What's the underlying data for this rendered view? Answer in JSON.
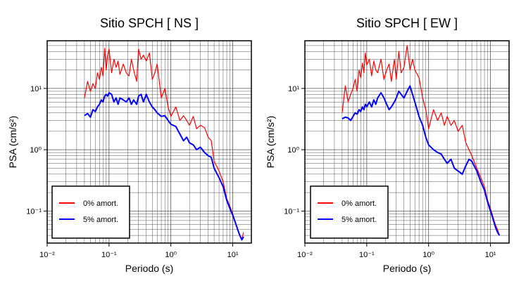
{
  "chart_data": [
    {
      "type": "line",
      "title": "Sitio SPCH [ NS ]",
      "xlabel": "Periodo (s)",
      "ylabel": "PSA (cm/s²)",
      "xscale": "log",
      "yscale": "log",
      "xlim": [
        0.01,
        20
      ],
      "ylim": [
        0.03,
        60
      ],
      "grid": true,
      "legend_position": "bottom-left",
      "x_tick_labels": [
        "10⁻²",
        "10⁻¹",
        "10⁰",
        "10¹"
      ],
      "y_tick_labels": [
        "10⁻¹",
        "10⁰",
        "10¹"
      ],
      "series": [
        {
          "name": "0% amort.",
          "color": "#ff0000",
          "x": [
            0.04,
            0.045,
            0.05,
            0.055,
            0.06,
            0.065,
            0.07,
            0.075,
            0.08,
            0.085,
            0.09,
            0.095,
            0.1,
            0.11,
            0.12,
            0.13,
            0.14,
            0.15,
            0.17,
            0.19,
            0.21,
            0.23,
            0.25,
            0.28,
            0.3,
            0.33,
            0.36,
            0.4,
            0.45,
            0.5,
            0.55,
            0.6,
            0.7,
            0.8,
            0.9,
            1.0,
            1.2,
            1.4,
            1.6,
            1.8,
            2.0,
            2.3,
            2.6,
            3.0,
            3.5,
            4.0,
            4.5,
            5.0,
            6.0,
            7.0,
            8.0,
            9.0,
            10.0,
            11.0,
            12.0,
            13.0,
            14.0,
            15.0
          ],
          "y": [
            7,
            13,
            9,
            12,
            10,
            18,
            14,
            22,
            16,
            45,
            20,
            35,
            44,
            18,
            30,
            22,
            28,
            17,
            25,
            18,
            16,
            30,
            20,
            13,
            44,
            30,
            35,
            28,
            38,
            14,
            18,
            25,
            7,
            10,
            5,
            3.5,
            5,
            3,
            3.6,
            3,
            2.5,
            3.5,
            2.2,
            2.5,
            2.3,
            1.6,
            1.4,
            0.65,
            0.45,
            0.3,
            0.16,
            0.12,
            0.09,
            0.065,
            0.05,
            0.04,
            0.035,
            0.045
          ]
        },
        {
          "name": "5% amort.",
          "color": "#0000ff",
          "x": [
            0.04,
            0.045,
            0.05,
            0.055,
            0.06,
            0.065,
            0.07,
            0.075,
            0.08,
            0.085,
            0.09,
            0.095,
            0.1,
            0.11,
            0.12,
            0.13,
            0.14,
            0.15,
            0.17,
            0.19,
            0.21,
            0.23,
            0.25,
            0.28,
            0.3,
            0.33,
            0.36,
            0.4,
            0.45,
            0.5,
            0.55,
            0.6,
            0.7,
            0.8,
            0.9,
            1.0,
            1.2,
            1.4,
            1.6,
            1.8,
            2.0,
            2.3,
            2.6,
            3.0,
            3.5,
            4.0,
            4.5,
            5.0,
            6.0,
            7.0,
            8.0,
            9.0,
            10.0,
            11.0,
            12.0,
            13.0,
            14.0,
            15.0
          ],
          "y": [
            3.6,
            3.9,
            3.4,
            4.5,
            4.2,
            5.0,
            5.5,
            6.5,
            6.0,
            7.5,
            8.0,
            7.5,
            8.5,
            8.0,
            6.0,
            7.0,
            5.5,
            7.0,
            6.5,
            6.0,
            7.0,
            5.5,
            6.5,
            5.5,
            7.5,
            8.0,
            6.0,
            8.0,
            6.0,
            5.0,
            4.5,
            4.0,
            3.5,
            3.6,
            3.0,
            2.6,
            2.4,
            1.8,
            1.4,
            1.6,
            1.3,
            1.2,
            1.0,
            1.1,
            0.9,
            0.8,
            0.75,
            0.5,
            0.35,
            0.25,
            0.15,
            0.11,
            0.085,
            0.065,
            0.05,
            0.04,
            0.034,
            0.038
          ]
        }
      ]
    },
    {
      "type": "line",
      "title": "Sitio SPCH [ EW ]",
      "xlabel": "Periodo (s)",
      "ylabel": "PSA (cm/s²)",
      "xscale": "log",
      "yscale": "log",
      "xlim": [
        0.01,
        20
      ],
      "ylim": [
        0.03,
        60
      ],
      "grid": true,
      "legend_position": "bottom-left",
      "x_tick_labels": [
        "10⁻²",
        "10⁻¹",
        "10⁰",
        "10¹"
      ],
      "y_tick_labels": [
        "10⁻¹",
        "10⁰",
        "10¹"
      ],
      "series": [
        {
          "name": "0% amort.",
          "color": "#ff0000",
          "x": [
            0.04,
            0.045,
            0.05,
            0.055,
            0.06,
            0.065,
            0.07,
            0.075,
            0.08,
            0.085,
            0.09,
            0.095,
            0.1,
            0.11,
            0.12,
            0.13,
            0.14,
            0.15,
            0.17,
            0.19,
            0.21,
            0.23,
            0.25,
            0.28,
            0.3,
            0.33,
            0.36,
            0.4,
            0.45,
            0.5,
            0.55,
            0.6,
            0.7,
            0.8,
            0.9,
            1.0,
            1.2,
            1.4,
            1.6,
            1.8,
            2.0,
            2.3,
            2.6,
            3.0,
            3.5,
            4.0,
            4.5,
            5.0,
            6.0,
            7.0,
            8.0,
            9.0,
            10.0,
            11.0,
            12.0,
            13.0,
            14.0
          ],
          "y": [
            4,
            11,
            6,
            8,
            10,
            14,
            9,
            20,
            15,
            26,
            18,
            38,
            24,
            30,
            16,
            28,
            20,
            18,
            30,
            14,
            20,
            25,
            13,
            30,
            14,
            40,
            18,
            22,
            50,
            20,
            30,
            20,
            15,
            7,
            4.5,
            2.2,
            4.5,
            3.0,
            4.0,
            2.5,
            3.5,
            2.5,
            3.0,
            2.0,
            2.5,
            1.3,
            1.0,
            0.8,
            0.5,
            0.35,
            0.25,
            0.15,
            0.11,
            0.08,
            0.06,
            0.05,
            0.04
          ]
        },
        {
          "name": "5% amort.",
          "color": "#0000ff",
          "x": [
            0.04,
            0.045,
            0.05,
            0.055,
            0.06,
            0.065,
            0.07,
            0.075,
            0.08,
            0.085,
            0.09,
            0.095,
            0.1,
            0.11,
            0.12,
            0.13,
            0.14,
            0.15,
            0.17,
            0.19,
            0.21,
            0.23,
            0.25,
            0.28,
            0.3,
            0.33,
            0.36,
            0.4,
            0.45,
            0.5,
            0.55,
            0.6,
            0.7,
            0.8,
            0.9,
            1.0,
            1.2,
            1.4,
            1.6,
            1.8,
            2.0,
            2.3,
            2.6,
            3.0,
            3.5,
            4.0,
            4.5,
            5.0,
            6.0,
            7.0,
            8.0,
            9.0,
            10.0,
            11.0,
            12.0,
            13.0,
            14.0
          ],
          "y": [
            3.2,
            3.4,
            3.3,
            3.0,
            3.5,
            4.0,
            3.8,
            4.5,
            4.2,
            5.0,
            4.5,
            5.5,
            5.0,
            6.0,
            5.0,
            6.5,
            5.5,
            7.0,
            8.5,
            7.0,
            5.5,
            4.5,
            5.0,
            6.0,
            7.0,
            9.0,
            8.0,
            7.0,
            9.0,
            11.0,
            8.0,
            6.0,
            3.5,
            2.5,
            1.6,
            1.2,
            1.0,
            0.9,
            0.85,
            0.7,
            0.6,
            0.7,
            0.5,
            0.45,
            0.4,
            0.55,
            0.7,
            0.65,
            0.45,
            0.3,
            0.22,
            0.14,
            0.1,
            0.075,
            0.055,
            0.045,
            0.04
          ]
        }
      ]
    }
  ]
}
